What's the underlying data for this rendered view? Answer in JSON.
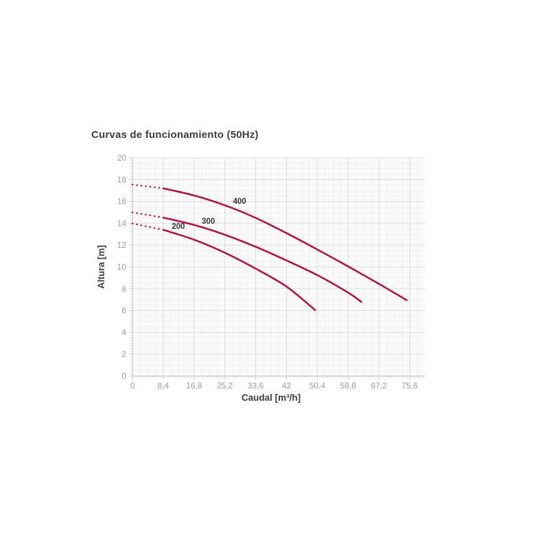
{
  "chart_data": {
    "type": "line",
    "title": "Curvas de funcionamiento (50Hz)",
    "xlabel": "Caudal [m³/h]",
    "ylabel": "Altura [m]",
    "xlim": [
      0,
      79.7
    ],
    "ylim": [
      0,
      20
    ],
    "grid": {
      "major": true,
      "minor": true
    },
    "legend_position": "inline-labels",
    "x_ticks": [
      {
        "v": 0,
        "label": "0"
      },
      {
        "v": 8.4,
        "label": "8,4"
      },
      {
        "v": 16.8,
        "label": "16,8"
      },
      {
        "v": 25.2,
        "label": "25,2"
      },
      {
        "v": 33.6,
        "label": "33,6"
      },
      {
        "v": 42,
        "label": "42"
      },
      {
        "v": 50.4,
        "label": "50,4"
      },
      {
        "v": 58.8,
        "label": "58,8"
      },
      {
        "v": 67.2,
        "label": "67,2"
      },
      {
        "v": 75.6,
        "label": "75,6"
      }
    ],
    "y_ticks": [
      {
        "v": 0,
        "label": "0"
      },
      {
        "v": 2,
        "label": "2"
      },
      {
        "v": 4,
        "label": "4"
      },
      {
        "v": 6,
        "label": "6"
      },
      {
        "v": 8,
        "label": "8"
      },
      {
        "v": 10,
        "label": "10"
      },
      {
        "v": 12,
        "label": "12"
      },
      {
        "v": 14,
        "label": "14"
      },
      {
        "v": 16,
        "label": "16"
      },
      {
        "v": 18,
        "label": "18"
      },
      {
        "v": 20,
        "label": "20"
      }
    ],
    "series": [
      {
        "name": "400",
        "label": {
          "text": "400",
          "x": 29.2,
          "y": 16.05
        },
        "dotted_points": [
          [
            0,
            17.55
          ],
          [
            8.1,
            17.22
          ]
        ],
        "points": [
          [
            8.4,
            17.2
          ],
          [
            16.8,
            16.55
          ],
          [
            25.2,
            15.65
          ],
          [
            33.6,
            14.5
          ],
          [
            42,
            13.1
          ],
          [
            50.4,
            11.6
          ],
          [
            58.8,
            10.05
          ],
          [
            67.2,
            8.45
          ],
          [
            74.8,
            6.95
          ]
        ]
      },
      {
        "name": "300",
        "label": {
          "text": "300",
          "x": 20.7,
          "y": 14.2
        },
        "dotted_points": [
          [
            0,
            15.0
          ],
          [
            8.1,
            14.55
          ]
        ],
        "points": [
          [
            8.4,
            14.52
          ],
          [
            16.8,
            13.85
          ],
          [
            25.2,
            12.95
          ],
          [
            33.6,
            11.85
          ],
          [
            42,
            10.6
          ],
          [
            50.4,
            9.25
          ],
          [
            58.8,
            7.65
          ],
          [
            62.4,
            6.8
          ]
        ]
      },
      {
        "name": "200",
        "label": {
          "text": "200",
          "x": 12.5,
          "y": 13.75
        },
        "dotted_points": [
          [
            0,
            13.98
          ],
          [
            8.1,
            13.42
          ]
        ],
        "points": [
          [
            8.4,
            13.4
          ],
          [
            16.8,
            12.5
          ],
          [
            25.2,
            11.3
          ],
          [
            33.6,
            9.85
          ],
          [
            42,
            8.2
          ],
          [
            49.8,
            6.05
          ]
        ]
      }
    ],
    "colors": {
      "curve": "#b1143e",
      "grid_major": "#dcdcdc",
      "grid_minor_v": "#efefef",
      "grid_minor_h": "#f2f2f2",
      "axis_line": "#c6c6c6",
      "minor_tick": "#d2d2d2",
      "tick_text": "#9b9b9b",
      "label_text": "#3d3d3d",
      "curve_label_text": "#333333",
      "plot_background": "#fafafa",
      "page_background": "#ffffff"
    }
  }
}
